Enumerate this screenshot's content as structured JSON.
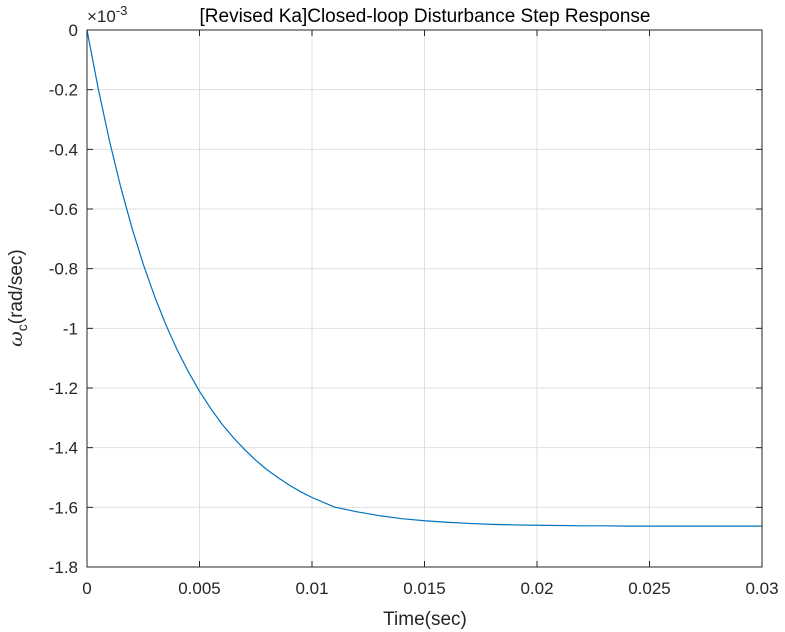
{
  "chart_data": {
    "type": "line",
    "title": "[Revised Ka]Closed-loop Disturbance Step Response",
    "xlabel": "Time(sec)",
    "ylabel_symbol": "ω",
    "ylabel_subscript": "c",
    "ylabel_rest": "(rad/sec)",
    "exponent_base": "×10",
    "exponent_power": "-3",
    "xlim": [
      0,
      0.03
    ],
    "ylim": [
      -1.8,
      0
    ],
    "xticks": [
      0,
      0.005,
      0.01,
      0.015,
      0.02,
      0.025,
      0.03
    ],
    "xtick_labels": [
      "0",
      "0.005",
      "0.01",
      "0.015",
      "0.02",
      "0.025",
      "0.03"
    ],
    "yticks": [
      0,
      -0.2,
      -0.4,
      -0.6,
      -0.8,
      -1,
      -1.2,
      -1.4,
      -1.6,
      -1.8
    ],
    "ytick_labels": [
      "0",
      "-0.2",
      "-0.4",
      "-0.6",
      "-0.8",
      "-1",
      "-1.2",
      "-1.4",
      "-1.6",
      "-1.8"
    ],
    "grid": true,
    "series": [
      {
        "color": "#0072BD",
        "x": [
          0,
          0.0005,
          0.001,
          0.0015,
          0.002,
          0.0025,
          0.003,
          0.0035,
          0.004,
          0.0045,
          0.005,
          0.0055,
          0.006,
          0.0065,
          0.007,
          0.0075,
          0.008,
          0.0085,
          0.009,
          0.0095,
          0.01,
          0.011,
          0.012,
          0.013,
          0.014,
          0.015,
          0.016,
          0.017,
          0.018,
          0.019,
          0.02,
          0.021,
          0.022,
          0.023,
          0.024,
          0.025,
          0.026,
          0.027,
          0.028,
          0.029,
          0.03
        ],
        "y": [
          0,
          -0.197,
          -0.372,
          -0.527,
          -0.664,
          -0.785,
          -0.892,
          -0.987,
          -1.071,
          -1.145,
          -1.211,
          -1.269,
          -1.321,
          -1.366,
          -1.406,
          -1.442,
          -1.474,
          -1.501,
          -1.526,
          -1.548,
          -1.567,
          -1.599,
          -1.615,
          -1.628,
          -1.638,
          -1.645,
          -1.65,
          -1.654,
          -1.657,
          -1.659,
          -1.66,
          -1.661,
          -1.662,
          -1.662,
          -1.663,
          -1.663,
          -1.663,
          -1.663,
          -1.663,
          -1.663,
          -1.663
        ]
      }
    ]
  }
}
